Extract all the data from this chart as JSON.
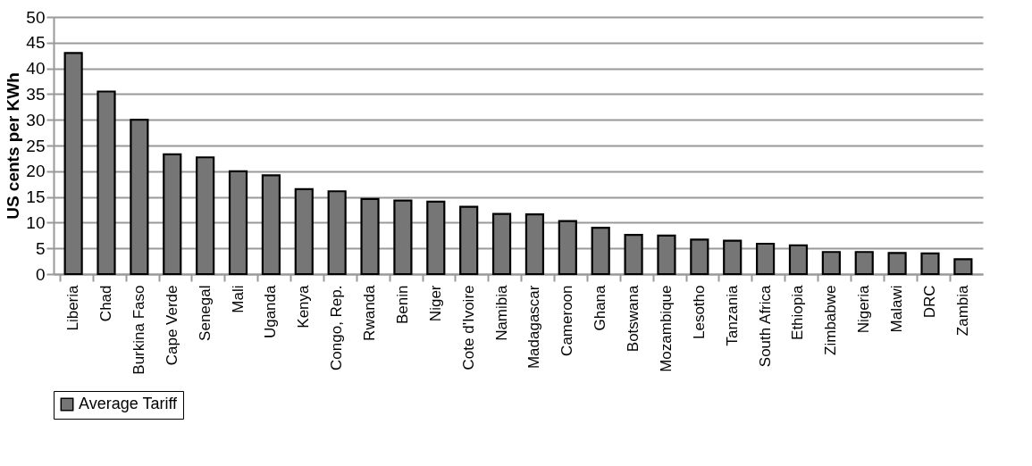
{
  "chart_data": {
    "type": "bar",
    "ylabel": "US  cents per KWh",
    "categories": [
      "Liberia",
      "Chad",
      "Burkina Faso",
      "Cape Verde",
      "Senegal",
      "Mali",
      "Uganda",
      "Kenya",
      "Congo, Rep.",
      "Rwanda",
      "Benin",
      "Niger",
      "Cote d'Ivoire",
      "Namibia",
      "Madagascar",
      "Cameroon",
      "Ghana",
      "Botswana",
      "Mozambique",
      "Lesotho",
      "Tanzania",
      "South Africa",
      "Ethiopia",
      "Zimbabwe",
      "Nigeria",
      "Malawi",
      "DRC",
      "Zambia"
    ],
    "series": [
      {
        "name": "Average Tariff",
        "color": "#767676",
        "values": [
          43,
          35.5,
          30,
          23.3,
          22.7,
          20,
          19.2,
          16.5,
          16.1,
          14.6,
          14.3,
          14.1,
          13.1,
          11.7,
          11.6,
          10.3,
          9,
          7.6,
          7.5,
          6.7,
          6.5,
          5.9,
          5.6,
          4.3,
          4.3,
          4.1,
          4.0,
          2.9
        ]
      }
    ],
    "ylim": [
      0,
      50
    ],
    "yticks": [
      0,
      5,
      10,
      15,
      20,
      25,
      30,
      35,
      40,
      45,
      50
    ],
    "grid": "y",
    "legend": "bottom"
  }
}
